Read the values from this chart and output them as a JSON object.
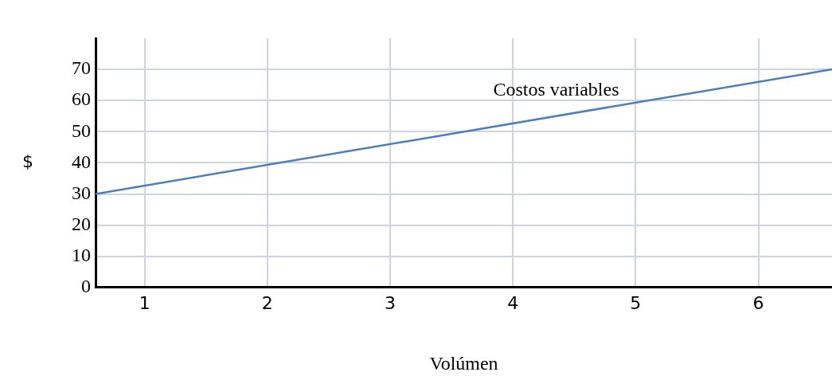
{
  "chart_data": {
    "type": "line",
    "xlabel": "Volúmen",
    "ylabel": "$",
    "xlim": [
      0.6,
      6.6
    ],
    "xticks": [
      1,
      2,
      3,
      4,
      5,
      6
    ],
    "ylim": [
      0,
      80
    ],
    "yticks": [
      0,
      10,
      20,
      30,
      40,
      50,
      60,
      70
    ],
    "grid": true,
    "legend": false,
    "marker": "none",
    "series": [
      {
        "name": "Costos variables",
        "color": "#4a7ebf",
        "x": [
          0.6,
          6.6
        ],
        "values": [
          30,
          70
        ]
      }
    ]
  }
}
